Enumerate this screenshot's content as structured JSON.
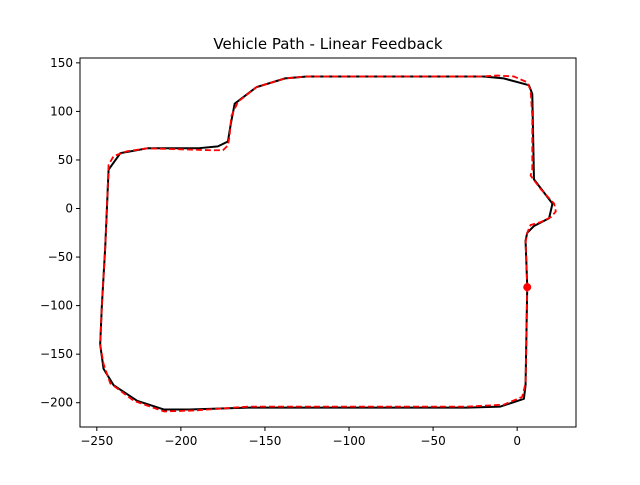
{
  "chart_data": {
    "type": "line",
    "title": "Vehicle Path - Linear Feedback",
    "xlabel": "",
    "ylabel": "",
    "xlim": [
      -260,
      35
    ],
    "ylim": [
      -225,
      155
    ],
    "xticks": [
      -250,
      -200,
      -150,
      -100,
      -50,
      0
    ],
    "yticks": [
      150,
      100,
      50,
      0,
      -50,
      -100,
      -150,
      -200
    ],
    "grid": false,
    "series": [
      {
        "style": "solid",
        "color": "#000000",
        "points": [
          [
            6,
            -80
          ],
          [
            5,
            -182
          ],
          [
            4,
            -196
          ],
          [
            -10,
            -204
          ],
          [
            -30,
            -205
          ],
          [
            -160,
            -205
          ],
          [
            -195,
            -207
          ],
          [
            -210,
            -207
          ],
          [
            -226,
            -198
          ],
          [
            -240,
            -182
          ],
          [
            -246,
            -165
          ],
          [
            -248,
            -140
          ],
          [
            -247,
            -100
          ],
          [
            -245,
            -40
          ],
          [
            -244,
            0
          ],
          [
            -243,
            40
          ],
          [
            -236,
            57
          ],
          [
            -220,
            62
          ],
          [
            -190,
            62
          ],
          [
            -178,
            64
          ],
          [
            -172,
            69
          ],
          [
            -171,
            80
          ],
          [
            -170,
            90
          ],
          [
            -168,
            108
          ],
          [
            -155,
            125
          ],
          [
            -138,
            134
          ],
          [
            -125,
            136
          ],
          [
            -20,
            136
          ],
          [
            -8,
            134
          ],
          [
            7,
            127
          ],
          [
            9,
            118
          ],
          [
            10,
            30
          ],
          [
            21,
            5
          ],
          [
            19,
            -10
          ],
          [
            10,
            -18
          ],
          [
            6,
            -25
          ],
          [
            5,
            -33
          ],
          [
            6,
            -80
          ]
        ]
      },
      {
        "style": "dashed",
        "color": "#ff0000",
        "points": [
          [
            6,
            -80
          ],
          [
            5,
            -180
          ],
          [
            3,
            -194
          ],
          [
            -8,
            -202
          ],
          [
            -30,
            -204
          ],
          [
            -160,
            -204
          ],
          [
            -192,
            -208
          ],
          [
            -210,
            -209
          ],
          [
            -228,
            -198
          ],
          [
            -242,
            -180
          ],
          [
            -246,
            -160
          ],
          [
            -248,
            -140
          ],
          [
            -247,
            -100
          ],
          [
            -245,
            -40
          ],
          [
            -244,
            0
          ],
          [
            -243,
            45
          ],
          [
            -240,
            54
          ],
          [
            -232,
            59
          ],
          [
            -220,
            62
          ],
          [
            -182,
            60
          ],
          [
            -175,
            60
          ],
          [
            -172,
            65
          ],
          [
            -171,
            75
          ],
          [
            -170,
            95
          ],
          [
            -166,
            110
          ],
          [
            -155,
            125
          ],
          [
            -138,
            134
          ],
          [
            -125,
            136
          ],
          [
            -20,
            136
          ],
          [
            -12,
            137
          ],
          [
            -2,
            136
          ],
          [
            6,
            130
          ],
          [
            8,
            122
          ],
          [
            9,
            95
          ],
          [
            9,
            40
          ],
          [
            8,
            34
          ],
          [
            14,
            20
          ],
          [
            22,
            5
          ],
          [
            23,
            -3
          ],
          [
            20,
            -9
          ],
          [
            14,
            -14
          ],
          [
            8,
            -17
          ],
          [
            6,
            -25
          ],
          [
            5,
            -35
          ],
          [
            6,
            -80
          ]
        ]
      }
    ],
    "markers": [
      {
        "x": 6,
        "y": -81,
        "color": "#ff0000"
      }
    ]
  }
}
